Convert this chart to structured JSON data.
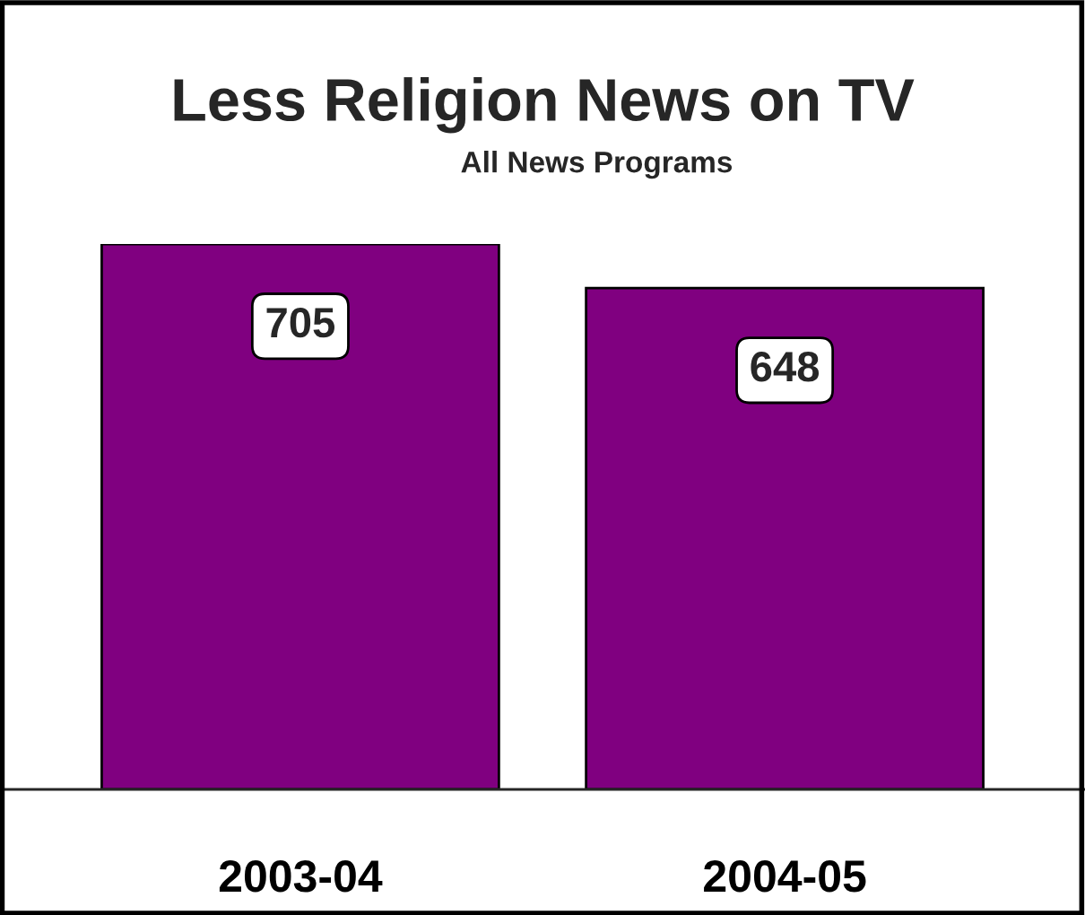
{
  "chart_data": {
    "type": "bar",
    "title": "Less Religion News on TV",
    "subtitle": "All News Programs",
    "categories": [
      "2003-04",
      "2004-05"
    ],
    "values": [
      705,
      648
    ],
    "color": "#800080",
    "data_labels": true
  }
}
